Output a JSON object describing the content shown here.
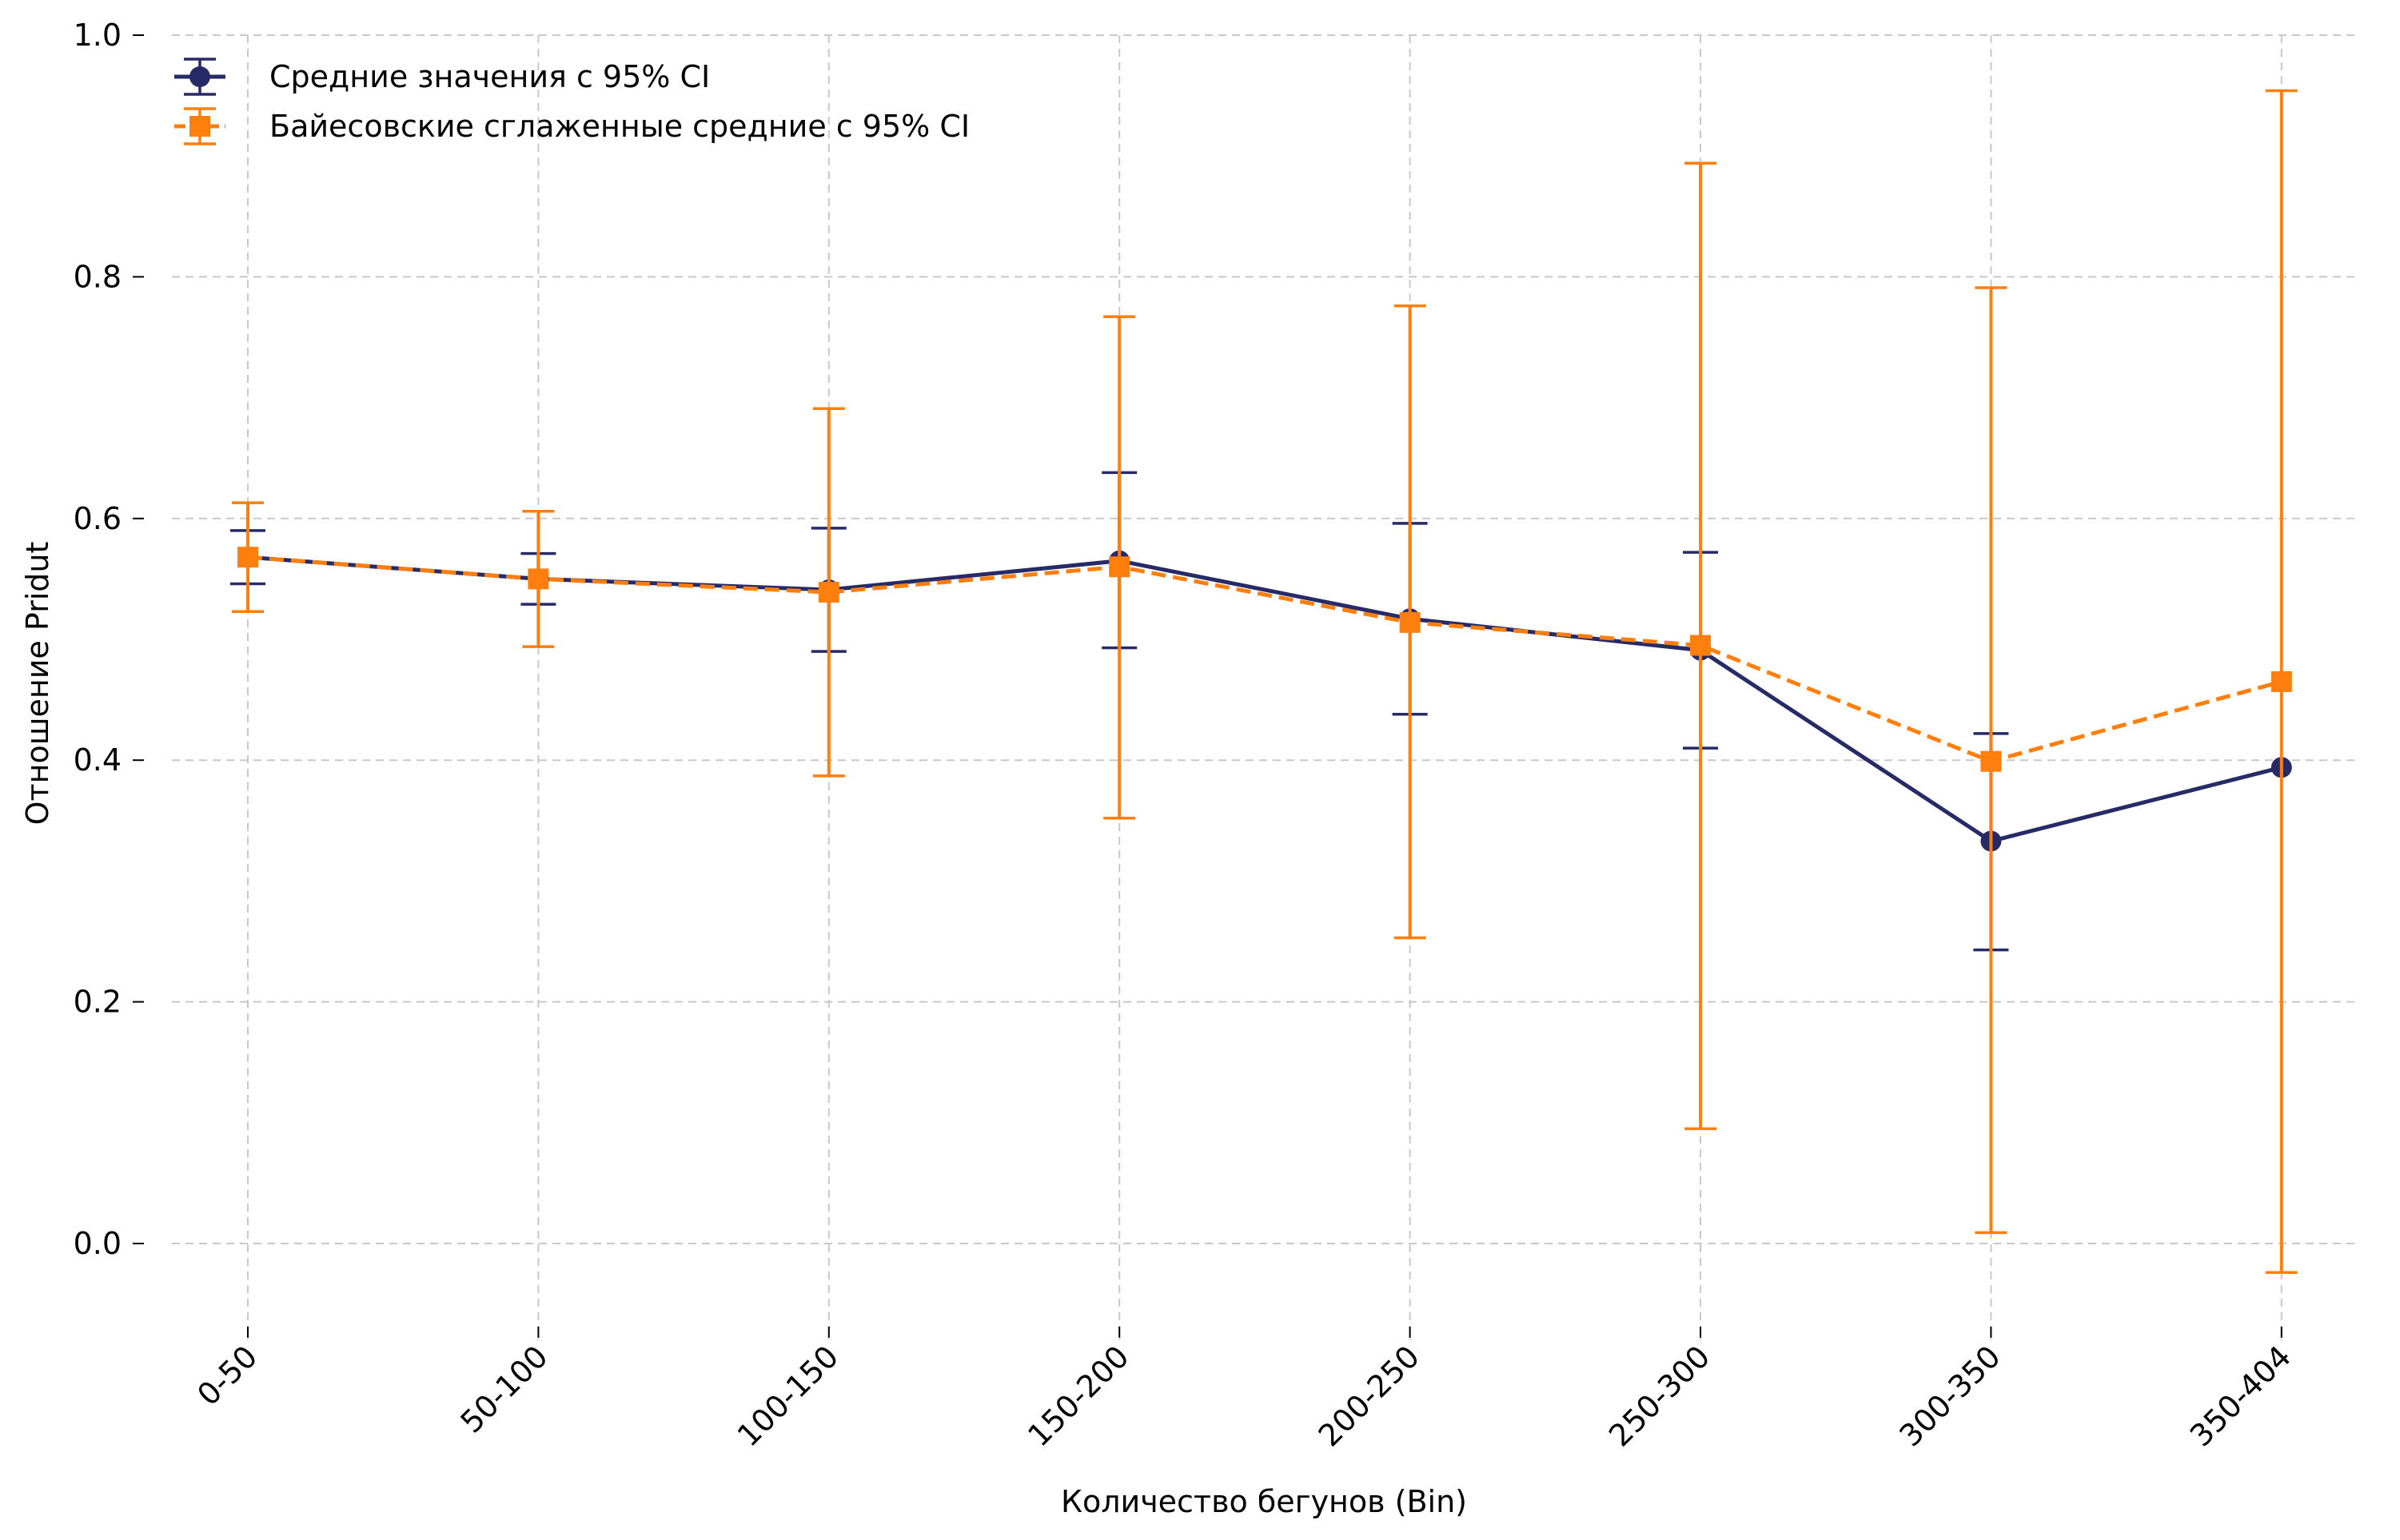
{
  "chart_data": {
    "type": "line",
    "xlabel": "Количество бегунов (Bin)",
    "ylabel": "Отношение Pridut",
    "categories": [
      "0-50",
      "50-100",
      "100-150",
      "150-200",
      "200-250",
      "250-300",
      "300-350",
      "350-404"
    ],
    "ylim": [
      -0.08,
      1.0
    ],
    "yticks": [
      "0.0",
      "0.2",
      "0.4",
      "0.6",
      "0.8",
      "1.0"
    ],
    "grid": true,
    "legend_position": "top-left",
    "series": [
      {
        "name": "Средние значения с 95% CI",
        "color": "#262a66",
        "marker": "circle",
        "line_style": "solid",
        "values": [
          0.568,
          0.55,
          0.541,
          0.565,
          0.517,
          0.491,
          0.333,
          0.394
        ],
        "ci_low": [
          0.546,
          0.529,
          0.49,
          0.493,
          0.438,
          0.41,
          0.243,
          0.394
        ],
        "ci_high": [
          0.59,
          0.571,
          0.592,
          0.638,
          0.596,
          0.572,
          0.422,
          0.394
        ]
      },
      {
        "name": "Байесовские сглаженные средние с 95% CI",
        "color": "#ff7f0e",
        "marker": "square",
        "line_style": "dashed",
        "values": [
          0.568,
          0.55,
          0.539,
          0.56,
          0.514,
          0.495,
          0.399,
          0.465
        ],
        "ci_low": [
          0.523,
          0.494,
          0.387,
          0.352,
          0.253,
          0.095,
          0.009,
          -0.024
        ],
        "ci_high": [
          0.613,
          0.606,
          0.691,
          0.767,
          0.776,
          0.894,
          0.791,
          0.954
        ]
      }
    ]
  }
}
